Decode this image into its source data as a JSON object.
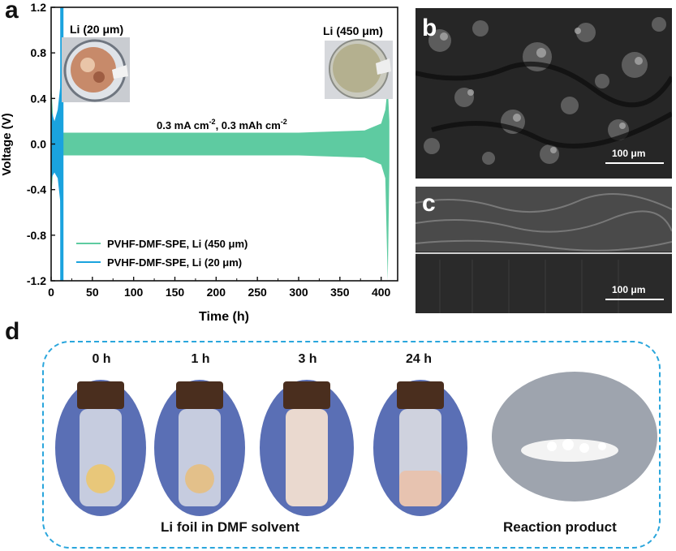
{
  "panels": {
    "a": "a",
    "b": "b",
    "c": "c",
    "d": "d"
  },
  "chart_data": {
    "type": "line",
    "xlabel": "Time (h)",
    "ylabel": "Voltage (V)",
    "xlim": [
      0,
      420
    ],
    "ylim": [
      -1.2,
      1.2
    ],
    "xticks": [
      "0",
      "50",
      "100",
      "150",
      "200",
      "250",
      "300",
      "350",
      "400"
    ],
    "yticks": [
      "1.2",
      "0.8",
      "0.4",
      "0.0",
      "-0.4",
      "-0.8",
      "-1.2"
    ],
    "annotation": "0.3 mA cm-2, 0.3 mAh cm-2",
    "annotation_parts": {
      "a": "0.3 mA cm",
      "sup1": "-2",
      "b": ", 0.3 mAh cm",
      "sup2": "-2"
    },
    "inset_labels": {
      "thin": "Li (20 μm)",
      "thick": "Li (450 μm)"
    },
    "series": [
      {
        "name": "PVHF-DMF-SPE, Li (450 μm)",
        "color": "#5ecba1",
        "time_range": [
          0,
          410
        ],
        "envelope_x": [
          0,
          3,
          10,
          50,
          100,
          200,
          300,
          380,
          400,
          405,
          408,
          410
        ],
        "upper": [
          0.55,
          0.15,
          0.1,
          0.1,
          0.1,
          0.1,
          0.1,
          0.12,
          0.18,
          0.3,
          0.5,
          0.2
        ],
        "lower": [
          -0.5,
          -0.15,
          -0.1,
          -0.1,
          -0.1,
          -0.1,
          -0.1,
          -0.12,
          -0.18,
          -0.3,
          -1.2,
          -0.2
        ]
      },
      {
        "name": "PVHF-DMF-SPE, Li (20 μm)",
        "color": "#1aa3de",
        "time_range": [
          0,
          13
        ],
        "envelope_x": [
          0,
          4,
          8,
          11,
          12,
          13
        ],
        "upper": [
          0.3,
          0.2,
          0.3,
          0.5,
          1.2,
          1.2
        ],
        "lower": [
          -0.3,
          -0.25,
          -0.3,
          -0.5,
          -1.2,
          -1.2
        ]
      }
    ]
  },
  "sem": {
    "b_scale": "100 μm",
    "c_scale": "100 μm"
  },
  "vials": {
    "times": [
      "0 h",
      "1 h",
      "3 h",
      "24 h"
    ],
    "caption_left": "Li foil in DMF solvent",
    "caption_right": "Reaction product"
  }
}
